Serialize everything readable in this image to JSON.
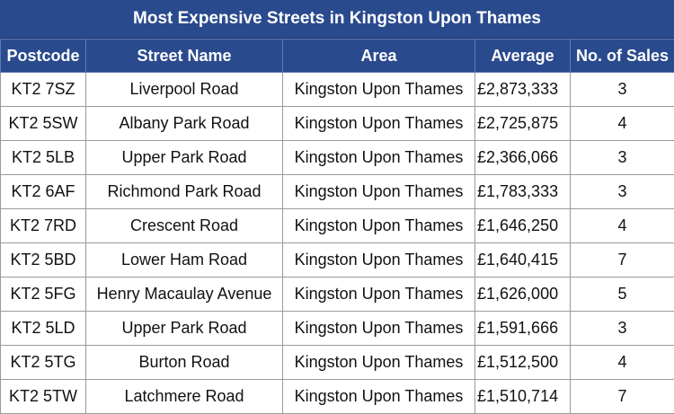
{
  "title": "Most Expensive Streets in Kingston Upon Thames",
  "columns": [
    "Postcode",
    "Street Name",
    "Area",
    "Average",
    "No. of Sales"
  ],
  "rows": [
    {
      "postcode": "KT2 7SZ",
      "street": "Liverpool Road",
      "area": "Kingston Upon Thames",
      "average": "£2,873,333",
      "sales": "3"
    },
    {
      "postcode": "KT2 5SW",
      "street": "Albany Park Road",
      "area": "Kingston Upon Thames",
      "average": "£2,725,875",
      "sales": "4"
    },
    {
      "postcode": "KT2 5LB",
      "street": "Upper Park Road",
      "area": "Kingston Upon Thames",
      "average": "£2,366,066",
      "sales": "3"
    },
    {
      "postcode": "KT2 6AF",
      "street": "Richmond Park Road",
      "area": "Kingston Upon Thames",
      "average": "£1,783,333",
      "sales": "3"
    },
    {
      "postcode": "KT2 7RD",
      "street": "Crescent Road",
      "area": "Kingston Upon Thames",
      "average": "£1,646,250",
      "sales": "4"
    },
    {
      "postcode": "KT2 5BD",
      "street": "Lower Ham Road",
      "area": "Kingston Upon Thames",
      "average": "£1,640,415",
      "sales": "7"
    },
    {
      "postcode": "KT2 5FG",
      "street": "Henry Macaulay Avenue",
      "area": "Kingston Upon Thames",
      "average": "£1,626,000",
      "sales": "5"
    },
    {
      "postcode": "KT2 5LD",
      "street": "Upper Park Road",
      "area": "Kingston Upon Thames",
      "average": "£1,591,666",
      "sales": "3"
    },
    {
      "postcode": "KT2 5TG",
      "street": "Burton Road",
      "area": "Kingston Upon Thames",
      "average": "£1,512,500",
      "sales": "4"
    },
    {
      "postcode": "KT2 5TW",
      "street": "Latchmere Road",
      "area": "Kingston Upon Thames",
      "average": "£1,510,714",
      "sales": "7"
    }
  ]
}
